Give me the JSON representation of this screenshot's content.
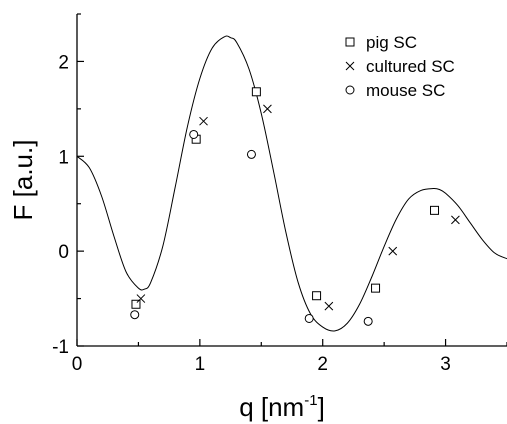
{
  "chart_data": {
    "type": "scatter",
    "xlabel": "q [nm",
    "xlabel_sup": "-1",
    "xlabel_end": "]",
    "ylabel": "F [a.u.]",
    "xlim": [
      0,
      3.5
    ],
    "ylim": [
      -1,
      2.5
    ],
    "x_ticks": [
      0,
      1,
      2,
      3
    ],
    "x_tick_labels": [
      "0",
      "1",
      "2",
      "3"
    ],
    "y_ticks": [
      -1,
      0,
      1,
      2
    ],
    "y_tick_labels": [
      "-1",
      "0",
      "1",
      "2"
    ],
    "grid": false,
    "legend_position": "top-right",
    "series": [
      {
        "name": "pig SC",
        "marker": "square",
        "points": [
          [
            0.48,
            -0.56
          ],
          [
            0.97,
            1.18
          ],
          [
            1.46,
            1.68
          ],
          [
            1.95,
            -0.47
          ],
          [
            2.43,
            -0.39
          ],
          [
            2.91,
            0.43
          ]
        ]
      },
      {
        "name": "cultured SC",
        "marker": "x",
        "points": [
          [
            0.52,
            -0.5
          ],
          [
            1.03,
            1.37
          ],
          [
            1.55,
            1.5
          ],
          [
            2.05,
            -0.58
          ],
          [
            2.57,
            0.0
          ],
          [
            3.08,
            0.33
          ]
        ]
      },
      {
        "name": "mouse SC",
        "marker": "circle",
        "points": [
          [
            0.47,
            -0.67
          ],
          [
            0.95,
            1.23
          ],
          [
            1.42,
            1.02
          ],
          [
            1.89,
            -0.71
          ],
          [
            2.37,
            -0.74
          ]
        ]
      }
    ],
    "curve": {
      "type": "line",
      "points": [
        [
          0.0,
          1.0
        ],
        [
          0.1,
          0.88
        ],
        [
          0.2,
          0.58
        ],
        [
          0.3,
          0.16
        ],
        [
          0.4,
          -0.22
        ],
        [
          0.5,
          -0.39
        ],
        [
          0.55,
          -0.4
        ],
        [
          0.6,
          -0.33
        ],
        [
          0.7,
          0.06
        ],
        [
          0.8,
          0.68
        ],
        [
          0.9,
          1.32
        ],
        [
          1.0,
          1.82
        ],
        [
          1.1,
          2.14
        ],
        [
          1.2,
          2.26
        ],
        [
          1.25,
          2.25
        ],
        [
          1.3,
          2.2
        ],
        [
          1.4,
          1.92
        ],
        [
          1.5,
          1.45
        ],
        [
          1.6,
          0.84
        ],
        [
          1.7,
          0.2
        ],
        [
          1.8,
          -0.33
        ],
        [
          1.9,
          -0.66
        ],
        [
          2.0,
          -0.8
        ],
        [
          2.1,
          -0.84
        ],
        [
          2.2,
          -0.76
        ],
        [
          2.3,
          -0.56
        ],
        [
          2.4,
          -0.27
        ],
        [
          2.5,
          0.05
        ],
        [
          2.6,
          0.34
        ],
        [
          2.7,
          0.55
        ],
        [
          2.8,
          0.64
        ],
        [
          2.9,
          0.66
        ],
        [
          2.95,
          0.65
        ],
        [
          3.0,
          0.61
        ],
        [
          3.1,
          0.48
        ],
        [
          3.2,
          0.3
        ],
        [
          3.3,
          0.12
        ],
        [
          3.4,
          -0.02
        ],
        [
          3.5,
          -0.08
        ]
      ]
    }
  }
}
